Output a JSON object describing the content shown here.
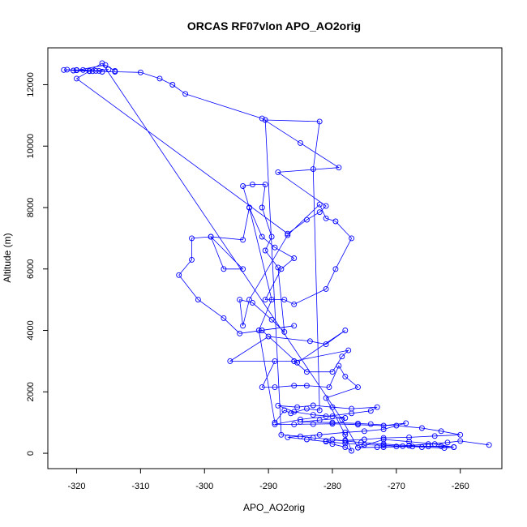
{
  "chart_data": {
    "type": "line",
    "title": "ORCAS RF07vlon APO_AO2orig",
    "xlabel": "APO_AO2orig",
    "ylabel": "Altitude (m)",
    "xlim": [
      -324.5,
      -253.5
    ],
    "ylim": [
      -500,
      13200
    ],
    "x_ticks": [
      -320,
      -310,
      -300,
      -290,
      -280,
      -270,
      -260
    ],
    "y_ticks": [
      0,
      2000,
      4000,
      6000,
      8000,
      10000,
      12000
    ],
    "grid": false,
    "marker": "open-circle",
    "colors": {
      "series": "#0000ff",
      "axis": "#000000",
      "background": "#ffffff"
    },
    "series": [
      {
        "points": [
          [
            -255.5,
            270
          ],
          [
            -260,
            400
          ],
          [
            -262,
            350
          ],
          [
            -265,
            300
          ],
          [
            -268,
            250
          ],
          [
            -270,
            220
          ],
          [
            -273,
            200
          ],
          [
            -276,
            180
          ],
          [
            -272,
            450
          ],
          [
            -268,
            380
          ],
          [
            -264,
            300
          ],
          [
            -261,
            200
          ],
          [
            -262.5,
            170
          ],
          [
            -266,
            200
          ],
          [
            -269,
            230
          ],
          [
            -272,
            260
          ],
          [
            -275,
            280
          ],
          [
            -278,
            320
          ],
          [
            -281,
            380
          ],
          [
            -284,
            450
          ],
          [
            -287,
            520
          ],
          [
            -282,
            600
          ],
          [
            -278,
            680
          ],
          [
            -275,
            720
          ],
          [
            -272,
            780
          ],
          [
            -268.5,
            980
          ],
          [
            -272,
            900
          ],
          [
            -276,
            930
          ],
          [
            -280,
            960
          ],
          [
            -283,
            950
          ],
          [
            -286,
            940
          ],
          [
            -289,
            940
          ],
          [
            -285,
            1100
          ],
          [
            -281,
            1200
          ],
          [
            -277,
            1300
          ],
          [
            -274,
            1380
          ],
          [
            -273,
            1500
          ],
          [
            -277,
            1450
          ],
          [
            -280,
            1500
          ],
          [
            -283,
            1560
          ],
          [
            -285.5,
            1500
          ],
          [
            -288.5,
            1550
          ],
          [
            -286,
            1350
          ],
          [
            -283,
            1250
          ],
          [
            -280,
            1200
          ],
          [
            -278,
            1150
          ],
          [
            -282,
            1080
          ],
          [
            -285,
            1020
          ],
          [
            -280,
            1000
          ],
          [
            -276,
            970
          ],
          [
            -274,
            950
          ],
          [
            -270,
            900
          ],
          [
            -266,
            820
          ],
          [
            -263,
            720
          ],
          [
            -260,
            600
          ],
          [
            -264,
            560
          ],
          [
            -268,
            520
          ],
          [
            -272,
            500
          ],
          [
            -275,
            450
          ],
          [
            -278,
            420
          ],
          [
            -281,
            400
          ],
          [
            -280,
            300
          ],
          [
            -278,
            200
          ],
          [
            -277,
            80
          ],
          [
            -278,
            600
          ],
          [
            -281,
            1800
          ],
          [
            -276,
            2150
          ],
          [
            -278,
            2500
          ],
          [
            -279,
            2850
          ],
          [
            -280.5,
            2150
          ],
          [
            -284,
            2200
          ],
          [
            -286,
            2200
          ],
          [
            -289,
            2150
          ],
          [
            -291,
            2150
          ],
          [
            -289,
            3000
          ],
          [
            -286,
            3000
          ],
          [
            -284,
            2650
          ],
          [
            -280,
            2650
          ],
          [
            -278.5,
            3150
          ],
          [
            -277.5,
            3350
          ],
          [
            -286,
            3000
          ],
          [
            -296,
            3000
          ],
          [
            -290,
            3800
          ],
          [
            -283.5,
            3650
          ],
          [
            -281,
            3550
          ],
          [
            -278,
            4000
          ],
          [
            -285.5,
            2950
          ],
          [
            -291,
            4000
          ],
          [
            -286,
            4150
          ],
          [
            -294.5,
            3900
          ],
          [
            -297,
            4400
          ],
          [
            -301,
            5000
          ],
          [
            -304,
            5800
          ],
          [
            -302,
            6300
          ],
          [
            -302,
            7000
          ],
          [
            -299,
            7050
          ],
          [
            -294,
            6000
          ],
          [
            -297,
            6000
          ],
          [
            -299,
            7050
          ],
          [
            -294,
            6950
          ],
          [
            -293,
            8000
          ],
          [
            -291,
            7050
          ],
          [
            -289,
            6700
          ],
          [
            -286,
            6350
          ],
          [
            -288,
            6000
          ],
          [
            -290.5,
            5000
          ],
          [
            -287.5,
            5000
          ],
          [
            -286,
            4850
          ],
          [
            -281,
            5350
          ],
          [
            -279.5,
            6000
          ],
          [
            -277,
            7000
          ],
          [
            -279.5,
            7550
          ],
          [
            -281,
            7650
          ],
          [
            -282,
            8100
          ],
          [
            -287,
            7100
          ],
          [
            -293,
            5000
          ],
          [
            -294,
            4150
          ],
          [
            -294.5,
            5000
          ],
          [
            -292.5,
            4900
          ],
          [
            -289.5,
            4350
          ],
          [
            -287.5,
            3950
          ],
          [
            -288.5,
            6050
          ],
          [
            -290.5,
            6600
          ],
          [
            -289.5,
            7050
          ],
          [
            -291,
            8000
          ],
          [
            -290.5,
            8750
          ],
          [
            -292.5,
            8750
          ],
          [
            -294,
            8700
          ],
          [
            -293,
            8000
          ],
          [
            -289.5,
            5000
          ],
          [
            -291.5,
            4000
          ],
          [
            -289,
            1000
          ],
          [
            -287.5,
            1400
          ],
          [
            -286.5,
            1300
          ],
          [
            -284,
            1450
          ],
          [
            -282,
            1400
          ],
          [
            -283,
            9250
          ],
          [
            -282,
            10800
          ],
          [
            -290.5,
            10850
          ],
          [
            -288,
            600
          ],
          [
            -285,
            550
          ],
          [
            -283,
            500
          ],
          [
            -280,
            450
          ],
          [
            -278,
            400
          ],
          [
            -275.5,
            350
          ],
          [
            -272,
            300
          ],
          [
            -268,
            250
          ],
          [
            -265,
            220
          ],
          [
            -261,
            200
          ],
          [
            -263,
            230
          ],
          [
            -267.5,
            220
          ],
          [
            -272,
            200
          ],
          [
            -276,
            180
          ],
          [
            -278.5,
            1100
          ],
          [
            -316,
            12700
          ],
          [
            -318,
            12450
          ],
          [
            -320,
            12480
          ],
          [
            -322,
            12480
          ],
          [
            -319,
            12480
          ],
          [
            -317,
            12450
          ],
          [
            -316,
            12420
          ],
          [
            -314,
            12420
          ],
          [
            -310,
            12400
          ],
          [
            -307,
            12200
          ],
          [
            -305,
            12000
          ],
          [
            -303,
            11700
          ],
          [
            -291,
            10900
          ],
          [
            -285,
            10100
          ],
          [
            -279,
            9300
          ],
          [
            -288.5,
            9150
          ],
          [
            -281,
            8050
          ],
          [
            -282,
            7850
          ],
          [
            -284,
            7600
          ],
          [
            -287,
            7150
          ],
          [
            -320,
            12200
          ],
          [
            -318,
            12440
          ],
          [
            -316.5,
            12450
          ],
          [
            -315,
            12500
          ],
          [
            -317.5,
            12440
          ],
          [
            -320.5,
            12460
          ],
          [
            -321.5,
            12490
          ],
          [
            -320,
            12470
          ],
          [
            -315.5,
            12640
          ],
          [
            -314,
            12450
          ]
        ]
      }
    ]
  }
}
